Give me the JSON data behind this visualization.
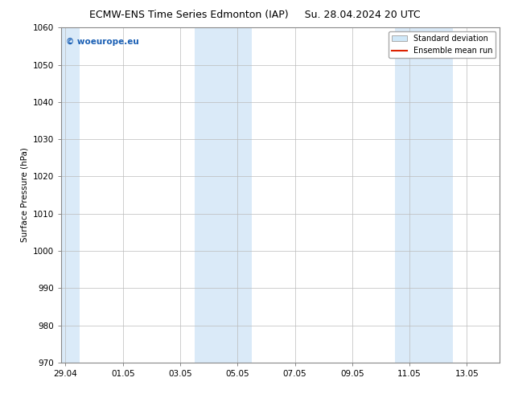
{
  "title_left": "ECMW-ENS Time Series Edmonton (IAP)",
  "title_right": "Su. 28.04.2024 20 UTC",
  "ylabel": "Surface Pressure (hPa)",
  "ylim": [
    970,
    1060
  ],
  "yticks": [
    970,
    980,
    990,
    1000,
    1010,
    1020,
    1030,
    1040,
    1050,
    1060
  ],
  "xtick_labels": [
    "29.04",
    "01.05",
    "03.05",
    "05.05",
    "07.05",
    "09.05",
    "11.05",
    "13.05"
  ],
  "xtick_positions": [
    0,
    2,
    4,
    6,
    8,
    10,
    12,
    14
  ],
  "xlim": [
    -0.15,
    15.15
  ],
  "shaded_regions": [
    {
      "x_start": -0.15,
      "x_end": 0.5
    },
    {
      "x_start": 4.5,
      "x_end": 6.5
    },
    {
      "x_start": 11.5,
      "x_end": 13.5
    }
  ],
  "shaded_color": "#daeaf8",
  "watermark_text": "© woeurope.eu",
  "watermark_color": "#1a5fb4",
  "legend_std_label": "Standard deviation",
  "legend_mean_label": "Ensemble mean run",
  "legend_std_facecolor": "#d0e8f8",
  "legend_std_edgecolor": "#aaaaaa",
  "legend_mean_color": "#dd2200",
  "bg_color": "#ffffff",
  "plot_bg_color": "#ffffff",
  "grid_color": "#bbbbbb",
  "spine_color": "#888888",
  "tick_label_fontsize": 7.5,
  "title_fontsize": 9,
  "ylabel_fontsize": 7.5,
  "watermark_fontsize": 7.5,
  "legend_fontsize": 7
}
